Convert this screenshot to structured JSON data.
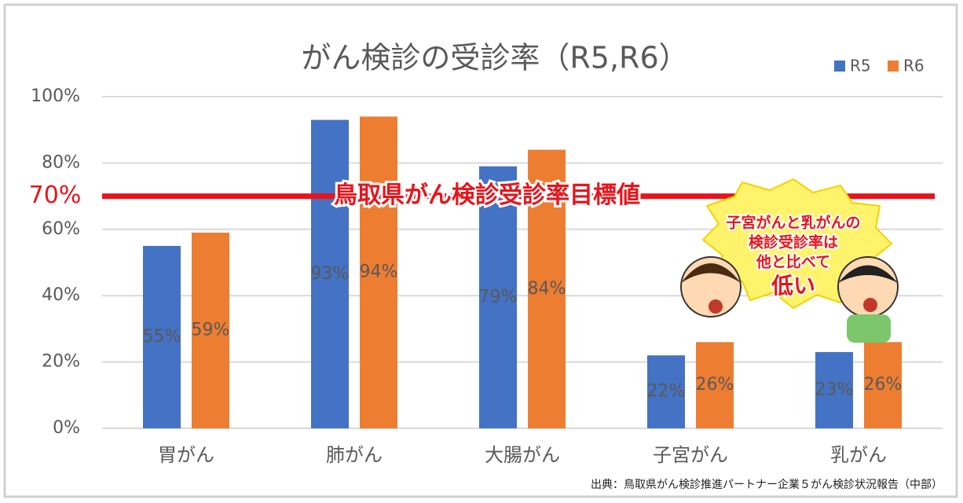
{
  "chart_data": {
    "type": "bar",
    "title": "がん検診の受診率（R5,R6）",
    "categories": [
      "胃がん",
      "肺がん",
      "大腸がん",
      "子宮がん",
      "乳がん"
    ],
    "series": [
      {
        "name": "R5",
        "color": "#4472c4",
        "values": [
          55,
          93,
          79,
          22,
          23
        ],
        "value_labels": [
          "55%",
          "93%",
          "79%",
          "22%",
          "23%"
        ]
      },
      {
        "name": "R6",
        "color": "#ed7d31",
        "values": [
          59,
          94,
          84,
          26,
          26
        ],
        "value_labels": [
          "59%",
          "94%",
          "84%",
          "26%",
          "26%"
        ]
      }
    ],
    "ylim": [
      0,
      100
    ],
    "yticks": [
      {
        "value": 0,
        "label": "0%"
      },
      {
        "value": 20,
        "label": "20%"
      },
      {
        "value": 40,
        "label": "40%"
      },
      {
        "value": 60,
        "label": "60%"
      },
      {
        "value": 80,
        "label": "80%"
      },
      {
        "value": 100,
        "label": "100%"
      }
    ],
    "grid": true,
    "legend": "top-right",
    "target": {
      "value": 70,
      "label": "70%",
      "text": "鳥取県がん検診受診率目標値",
      "color": "#e8141b"
    },
    "annotation": {
      "lines": [
        "子宮がんと乳がんの",
        "検診受診率は",
        "他と比べて",
        "低い"
      ]
    },
    "source": "出典：鳥取県がん検診推進パートナー企業５がん検診状況報告（中部）"
  }
}
